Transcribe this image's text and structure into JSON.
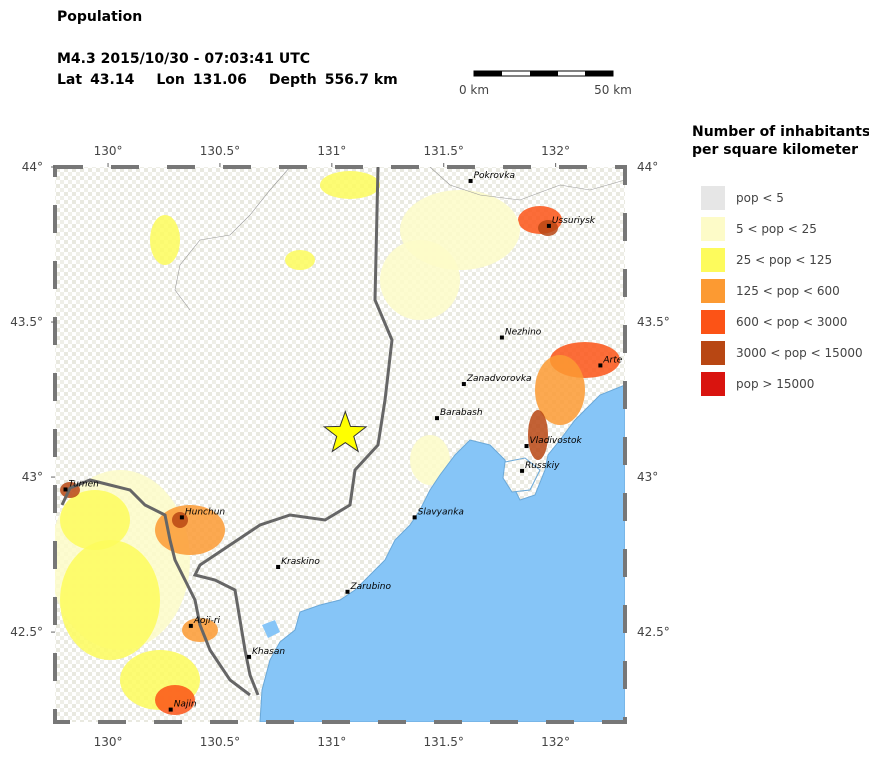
{
  "title": "Population",
  "event": "M4.3  2015/10/30 - 07:03:41 UTC",
  "location": [
    {
      "label": "Lat",
      "value": 43.14
    },
    {
      "label": "Lon",
      "value": 131.06
    },
    {
      "label": "Depth",
      "value": "556.7 km"
    }
  ],
  "scale_bar": {
    "start": "0 km",
    "end": "50 km"
  },
  "legend": {
    "title": [
      "Number of inhabitants",
      "per square kilometer"
    ],
    "items": [
      {
        "label": "pop < 5",
        "color": "#e6e6e6"
      },
      {
        "label": "5 < pop < 25",
        "color": "#fdfbc8"
      },
      {
        "label": "25 < pop < 125",
        "color": "#fdfb5c"
      },
      {
        "label": "125 < pop < 600",
        "color": "#fc9a32"
      },
      {
        "label": "600 < pop < 3000",
        "color": "#fc5316"
      },
      {
        "label": "3000 < pop < 15000",
        "color": "#b84713"
      },
      {
        "label": "pop > 15000",
        "color": "#d9140f"
      }
    ]
  },
  "map": {
    "lon_range": [
      129.763,
      132.31
    ],
    "lat_range": [
      42.21,
      44.0
    ],
    "lon_ticks": [
      {
        "value": 130,
        "label": "130°"
      },
      {
        "value": 130.5,
        "label": "130.5°"
      },
      {
        "value": 131,
        "label": "131°"
      },
      {
        "value": 131.5,
        "label": "131.5°"
      },
      {
        "value": 132,
        "label": "132°"
      }
    ],
    "lat_ticks": [
      {
        "value": 44,
        "label": "44°"
      },
      {
        "value": 43.5,
        "label": "43.5°"
      },
      {
        "value": 43,
        "label": "43°"
      },
      {
        "value": 42.5,
        "label": "42.5°"
      }
    ],
    "cities": [
      {
        "name": "Pokrovka",
        "lon": 131.62,
        "lat": 43.955
      },
      {
        "name": "Ussuriysk",
        "lon": 131.97,
        "lat": 43.81
      },
      {
        "name": "Nezhino",
        "lon": 131.76,
        "lat": 43.45
      },
      {
        "name": "Arte",
        "lon": 132.2,
        "lat": 43.36
      },
      {
        "name": "Zanadvorovka",
        "lon": 131.59,
        "lat": 43.3
      },
      {
        "name": "Barabash",
        "lon": 131.47,
        "lat": 43.19
      },
      {
        "name": "Vladivostok",
        "lon": 131.87,
        "lat": 43.1
      },
      {
        "name": "Russkiy",
        "lon": 131.85,
        "lat": 43.02
      },
      {
        "name": "Tumen",
        "lon": 129.81,
        "lat": 42.96
      },
      {
        "name": "Hunchun",
        "lon": 130.33,
        "lat": 42.87
      },
      {
        "name": "Slavyanka",
        "lon": 131.37,
        "lat": 42.87
      },
      {
        "name": "Kraskino",
        "lon": 130.76,
        "lat": 42.71
      },
      {
        "name": "Zarubino",
        "lon": 131.07,
        "lat": 42.63
      },
      {
        "name": "Aoji-ri",
        "lon": 130.37,
        "lat": 42.52
      },
      {
        "name": "Khasan",
        "lon": 130.63,
        "lat": 42.42
      },
      {
        "name": "Najin",
        "lon": 130.28,
        "lat": 42.25
      }
    ]
  }
}
